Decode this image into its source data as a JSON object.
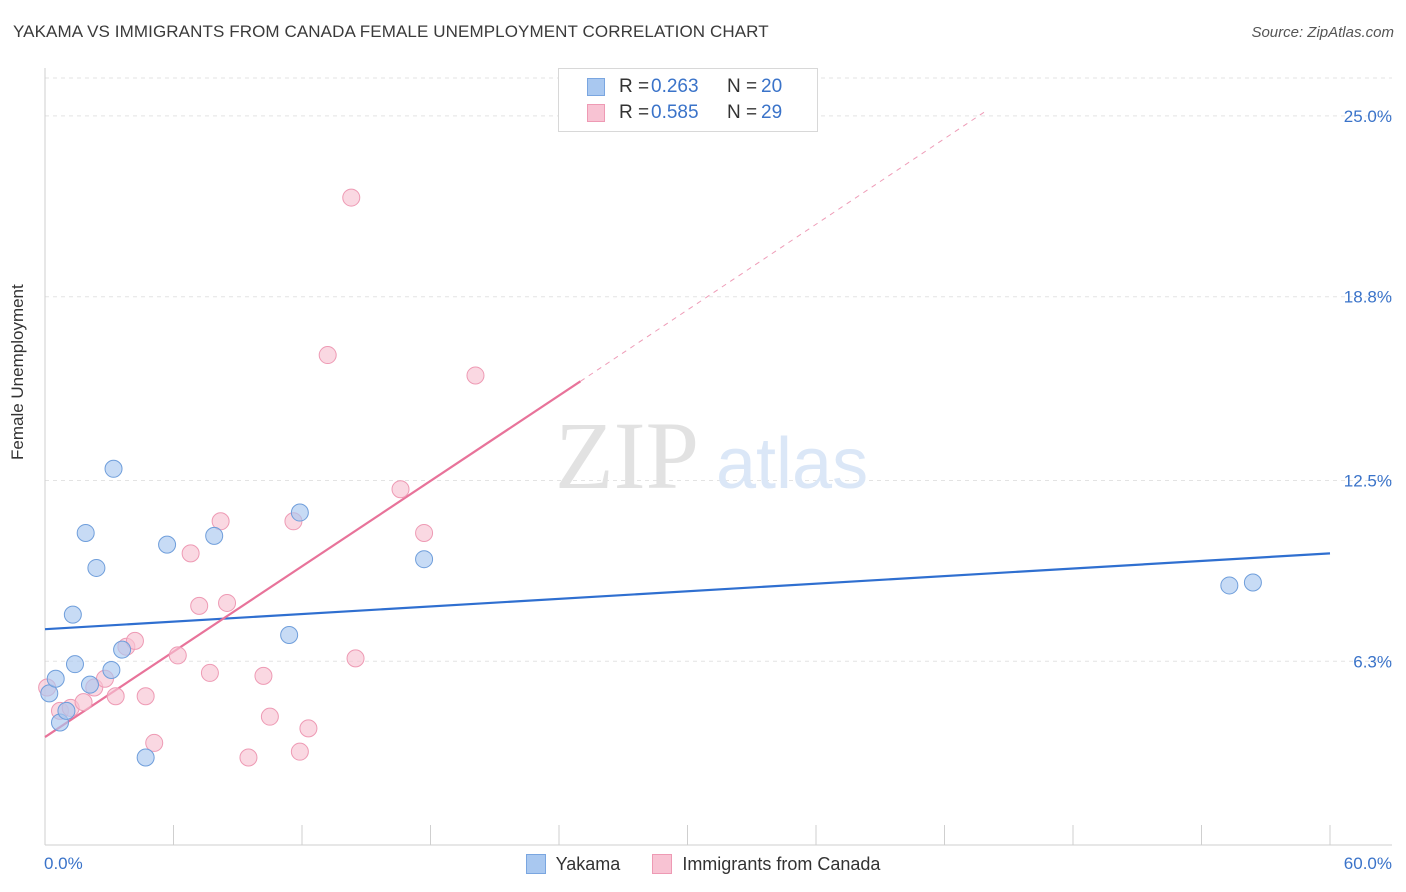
{
  "header": {
    "title": "YAKAMA VS IMMIGRANTS FROM CANADA FEMALE UNEMPLOYMENT CORRELATION CHART",
    "source": "Source: ZipAtlas.com"
  },
  "watermark": {
    "zip": "ZIP",
    "atlas": "atlas"
  },
  "legend_top": {
    "rows": [
      {
        "r_label": "R =",
        "r_value": "0.263",
        "n_label": "N =",
        "n_value": "20",
        "color": "#a9c8f0",
        "border": "#7aa6e0"
      },
      {
        "r_label": "R =",
        "r_value": "0.585",
        "n_label": "N =",
        "n_value": "29",
        "color": "#f8c3d3",
        "border": "#ee9ab4"
      }
    ]
  },
  "chart_data": {
    "type": "scatter",
    "title": "YAKAMA VS IMMIGRANTS FROM CANADA FEMALE UNEMPLOYMENT CORRELATION CHART",
    "xlabel": "",
    "ylabel": "Female Unemployment",
    "xlim": [
      0,
      60
    ],
    "ylim": [
      0,
      26.3
    ],
    "x_tick_labels": [
      "0.0%",
      "60.0%"
    ],
    "y_ticks": [
      6.3,
      12.5,
      18.8,
      25.0
    ],
    "y_tick_labels": [
      "6.3%",
      "12.5%",
      "18.8%",
      "25.0%"
    ],
    "grid": true,
    "legend_position": "bottom",
    "series": [
      {
        "name": "Yakama",
        "color": "#a9c8f0",
        "stroke": "#6f9edb",
        "line_color": "#2f6fd0",
        "points": [
          [
            0.2,
            5.2
          ],
          [
            0.5,
            5.7
          ],
          [
            0.7,
            4.2
          ],
          [
            1.0,
            4.6
          ],
          [
            1.3,
            7.9
          ],
          [
            1.4,
            6.2
          ],
          [
            1.9,
            10.7
          ],
          [
            2.1,
            5.5
          ],
          [
            2.4,
            9.5
          ],
          [
            3.1,
            6.0
          ],
          [
            3.2,
            12.9
          ],
          [
            3.6,
            6.7
          ],
          [
            4.7,
            3.0
          ],
          [
            5.7,
            10.3
          ],
          [
            7.9,
            10.6
          ],
          [
            11.4,
            7.2
          ],
          [
            11.9,
            11.4
          ],
          [
            17.7,
            9.8
          ],
          [
            55.3,
            8.9
          ],
          [
            56.4,
            9.0
          ]
        ],
        "trend": [
          [
            0,
            7.4
          ],
          [
            60,
            10.0
          ]
        ]
      },
      {
        "name": "Immigrants from Canada",
        "color": "#f8c3d3",
        "stroke": "#ee9ab4",
        "line_color": "#e8739a",
        "points": [
          [
            0.1,
            5.4
          ],
          [
            0.7,
            4.6
          ],
          [
            1.2,
            4.7
          ],
          [
            1.8,
            4.9
          ],
          [
            2.3,
            5.4
          ],
          [
            2.8,
            5.7
          ],
          [
            3.3,
            5.1
          ],
          [
            3.8,
            6.8
          ],
          [
            4.2,
            7.0
          ],
          [
            4.7,
            5.1
          ],
          [
            5.1,
            3.5
          ],
          [
            6.2,
            6.5
          ],
          [
            6.8,
            10.0
          ],
          [
            7.2,
            8.2
          ],
          [
            7.7,
            5.9
          ],
          [
            8.2,
            11.1
          ],
          [
            8.5,
            8.3
          ],
          [
            9.5,
            3.0
          ],
          [
            10.2,
            5.8
          ],
          [
            10.5,
            4.4
          ],
          [
            11.6,
            11.1
          ],
          [
            11.9,
            3.2
          ],
          [
            12.3,
            4.0
          ],
          [
            13.2,
            16.8
          ],
          [
            14.3,
            22.2
          ],
          [
            14.5,
            6.4
          ],
          [
            16.6,
            12.2
          ],
          [
            17.7,
            10.7
          ],
          [
            20.1,
            16.1
          ]
        ],
        "trend": [
          [
            0,
            3.7
          ],
          [
            25,
            15.9
          ]
        ],
        "trend_extension": [
          [
            25,
            15.9
          ],
          [
            44,
            25.2
          ]
        ]
      }
    ]
  },
  "legend_bottom": {
    "items": [
      {
        "label": "Yakama",
        "color": "#a9c8f0",
        "border": "#7aa6e0"
      },
      {
        "label": "Immigrants from Canada",
        "color": "#f8c3d3",
        "border": "#ee9ab4"
      }
    ]
  }
}
